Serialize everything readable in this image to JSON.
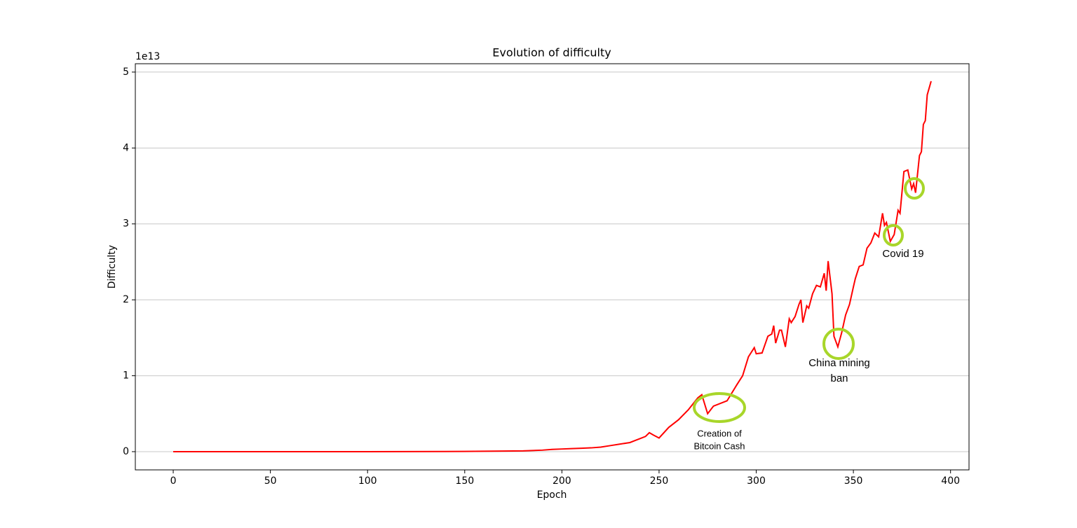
{
  "chart_data": {
    "type": "line",
    "title": "Evolution of difficulty",
    "x_label": "Epoch",
    "y_label": "Difficulty",
    "y_offset_label": "1e13",
    "xlim": [
      -19.5,
      409.5
    ],
    "ylim": [
      -0.24,
      5.11
    ],
    "xticks": [
      0,
      50,
      100,
      150,
      200,
      250,
      300,
      350,
      400
    ],
    "yticks": [
      0,
      1,
      2,
      3,
      4,
      5
    ],
    "grid": "y",
    "series": [
      {
        "color": "#ff0000",
        "x": [
          0,
          50,
          100,
          150,
          180,
          190,
          195,
          200,
          205,
          210,
          215,
          220,
          225,
          230,
          235,
          238,
          240,
          243,
          245,
          247,
          250,
          255,
          260,
          265,
          270,
          272,
          275,
          278,
          285,
          290,
          293,
          296,
          299,
          300,
          303,
          306,
          308,
          309,
          310,
          312,
          313,
          315,
          317,
          318,
          320,
          322,
          323,
          324,
          326,
          327,
          329,
          331,
          333,
          335,
          336,
          337,
          339,
          340,
          342,
          344,
          346,
          348,
          350,
          351,
          353,
          355,
          357,
          359,
          361,
          363,
          365,
          366,
          367,
          369,
          371,
          373,
          374,
          376,
          378,
          380,
          381,
          382,
          384,
          385,
          386,
          387,
          388,
          390
        ],
        "values": [
          0.0,
          0.0,
          0.0,
          0.003,
          0.01,
          0.02,
          0.03,
          0.035,
          0.04,
          0.045,
          0.05,
          0.06,
          0.08,
          0.1,
          0.12,
          0.15,
          0.17,
          0.2,
          0.25,
          0.22,
          0.18,
          0.32,
          0.42,
          0.55,
          0.71,
          0.75,
          0.5,
          0.6,
          0.67,
          0.88,
          1.0,
          1.25,
          1.37,
          1.29,
          1.3,
          1.52,
          1.55,
          1.66,
          1.43,
          1.6,
          1.6,
          1.38,
          1.75,
          1.7,
          1.78,
          1.94,
          2.0,
          1.7,
          1.92,
          1.89,
          2.08,
          2.19,
          2.17,
          2.35,
          2.12,
          2.51,
          2.08,
          1.52,
          1.38,
          1.57,
          1.8,
          1.94,
          2.17,
          2.28,
          2.44,
          2.46,
          2.68,
          2.75,
          2.88,
          2.83,
          3.14,
          2.98,
          3.02,
          2.77,
          2.86,
          3.18,
          3.14,
          3.69,
          3.71,
          3.46,
          3.53,
          3.41,
          3.9,
          3.95,
          4.31,
          4.36,
          4.7,
          4.88
        ]
      }
    ],
    "annotations": [
      {
        "lines": [
          "Creation of",
          "Bitcoin Cash"
        ]
      },
      {
        "lines": [
          "China mining",
          "ban"
        ]
      },
      {
        "lines": [
          "Covid 19"
        ]
      }
    ]
  }
}
